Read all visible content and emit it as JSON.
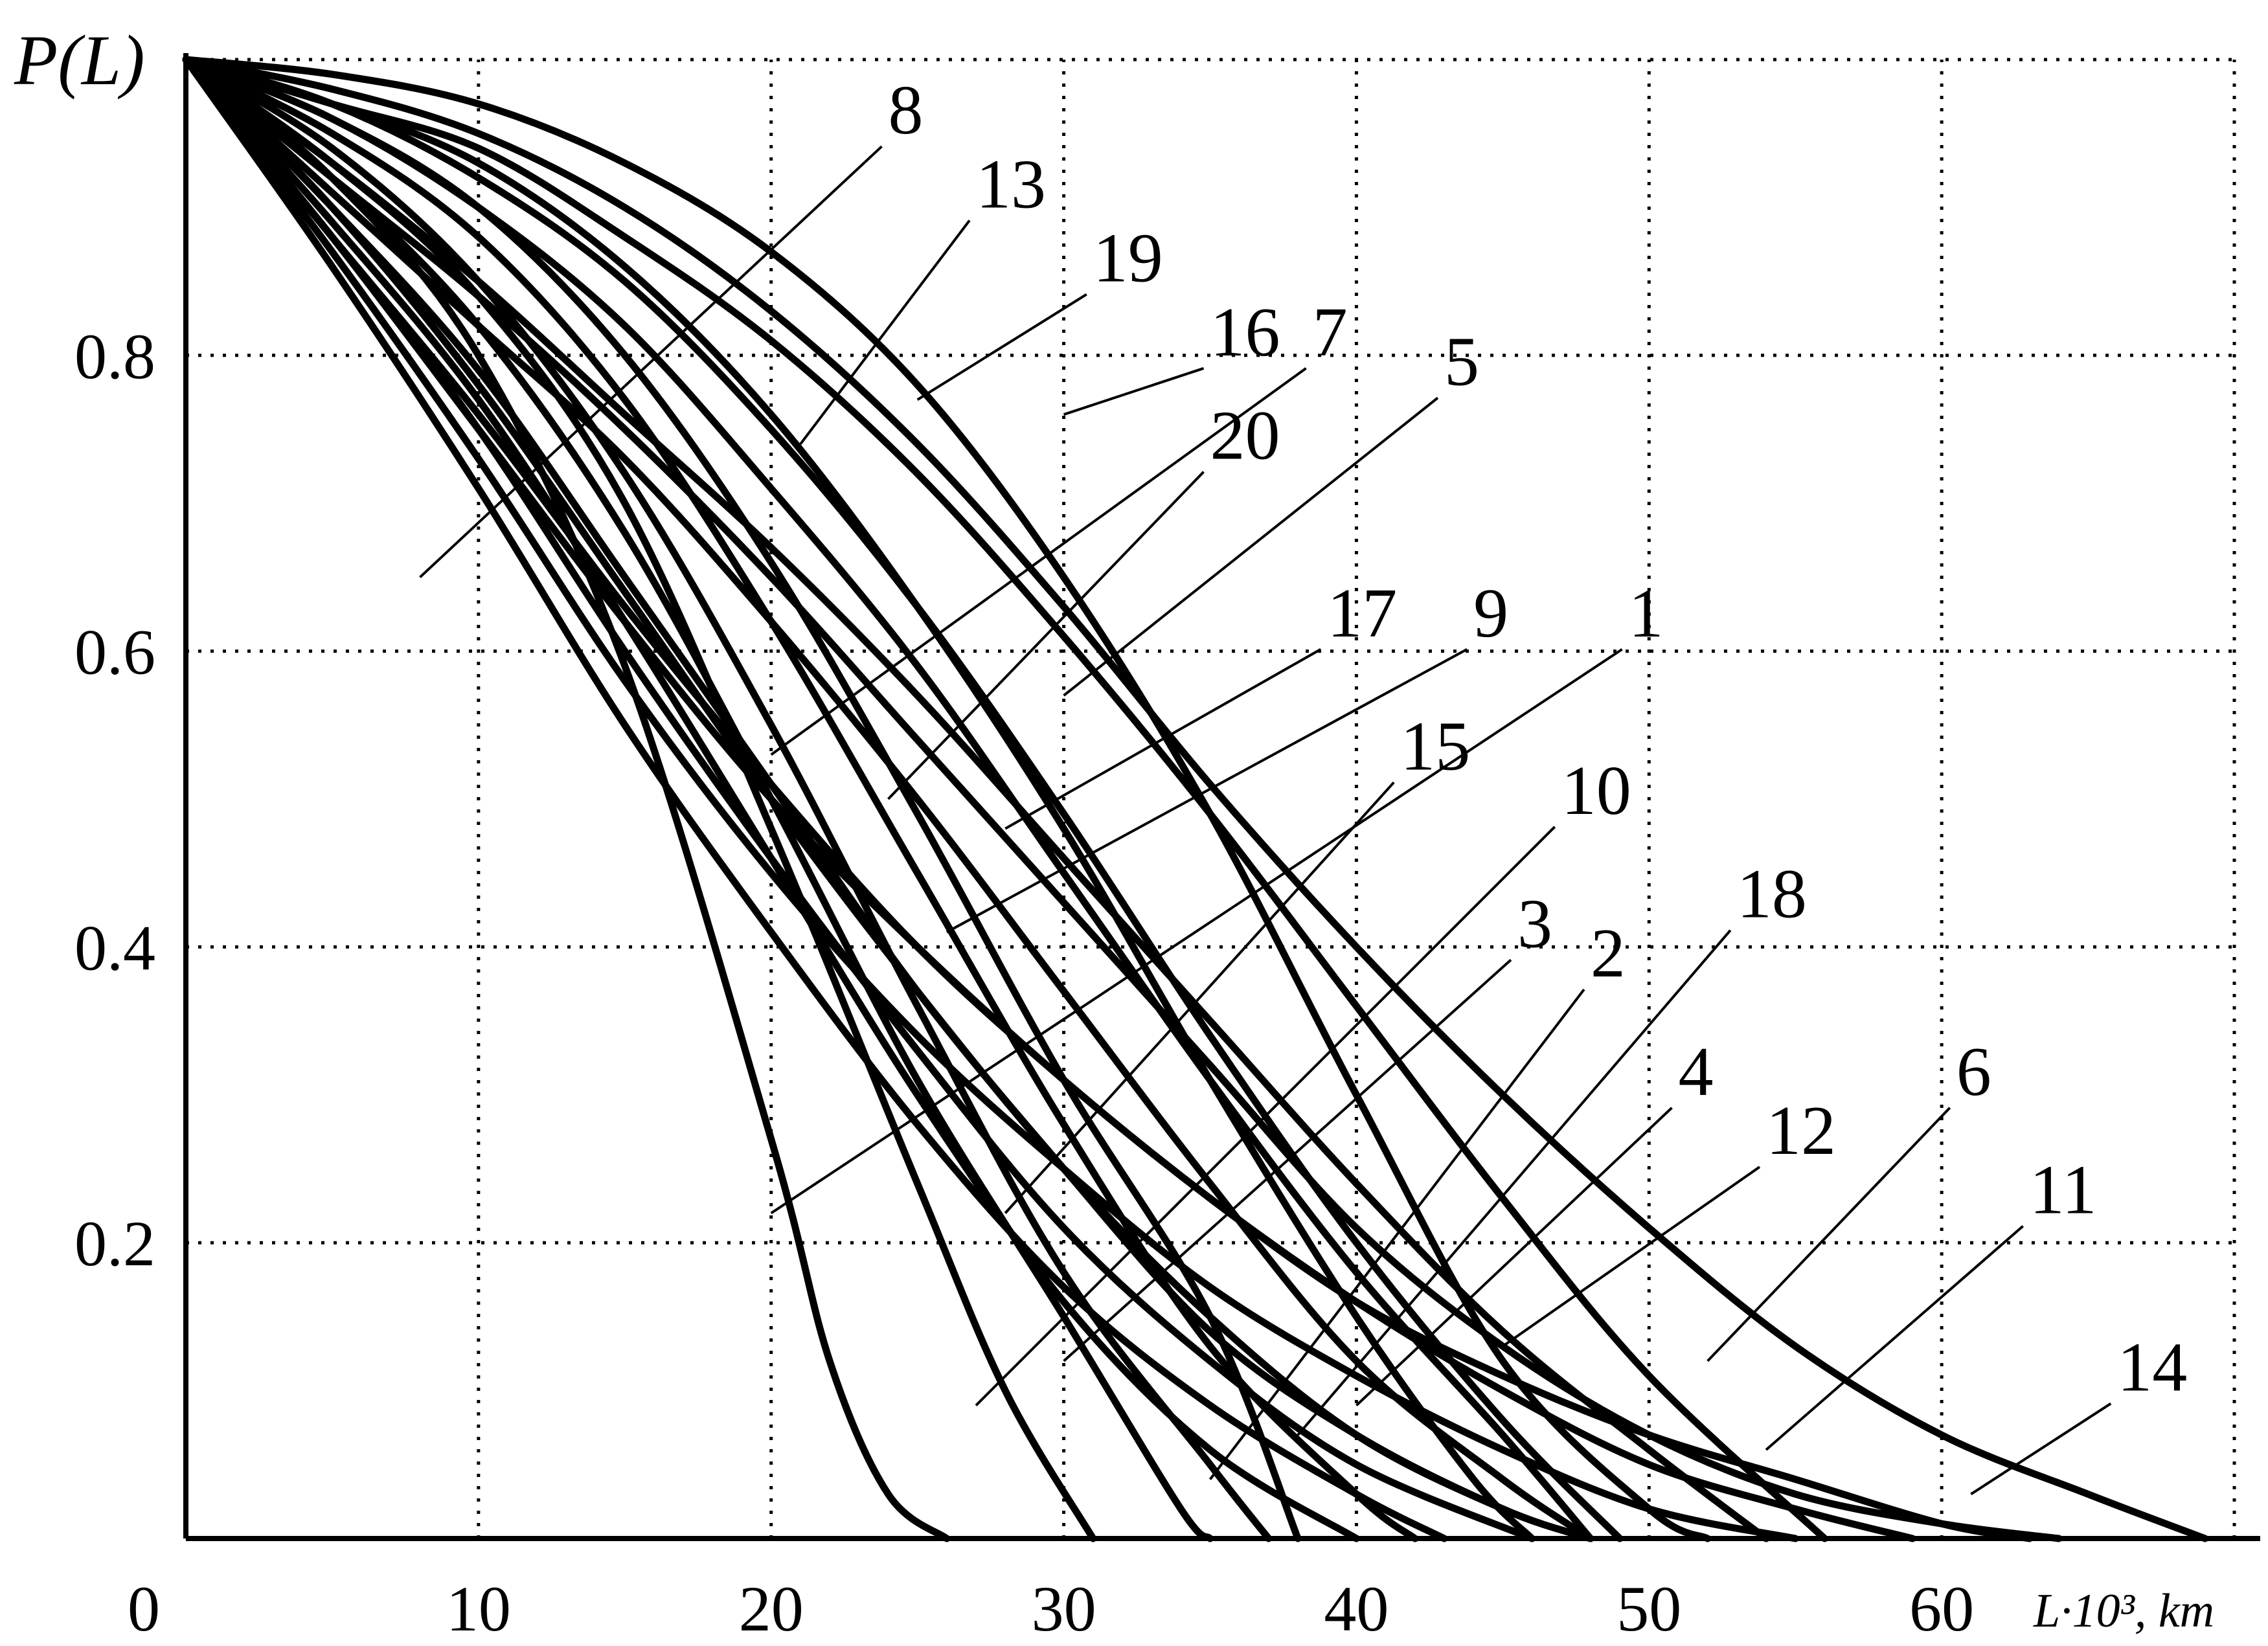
{
  "chart_data": {
    "type": "line",
    "ylabel": "P(L)",
    "xlabel": "L·10³, km",
    "xlim": [
      0,
      70
    ],
    "ylim": [
      0,
      1.0
    ],
    "x_ticks": [
      0,
      10,
      20,
      30,
      40,
      50,
      60
    ],
    "y_ticks": [
      0.2,
      0.4,
      0.6,
      0.8
    ],
    "x_tick_labels": [
      "0",
      "10",
      "20",
      "30",
      "40",
      "50",
      "60"
    ],
    "y_tick_labels": [
      "0.2",
      "0.4",
      "0.6",
      "0.8"
    ],
    "grid": true,
    "grid_x": [
      10,
      20,
      30,
      40,
      50,
      60,
      70
    ],
    "grid_y": [
      0.2,
      0.4,
      0.6,
      0.8,
      1.0
    ],
    "series": [
      {
        "name": "1",
        "points": [
          [
            0,
            1
          ],
          [
            5,
            0.93
          ],
          [
            10,
            0.85
          ],
          [
            15,
            0.76
          ],
          [
            20,
            0.67
          ],
          [
            25,
            0.57
          ],
          [
            30,
            0.46
          ],
          [
            35,
            0.35
          ],
          [
            40,
            0.24
          ],
          [
            45,
            0.14
          ],
          [
            50,
            0.06
          ],
          [
            54,
            0
          ]
        ]
      },
      {
        "name": "2",
        "points": [
          [
            0,
            1
          ],
          [
            5,
            0.9
          ],
          [
            10,
            0.79
          ],
          [
            15,
            0.65
          ],
          [
            20,
            0.51
          ],
          [
            25,
            0.37
          ],
          [
            30,
            0.25
          ],
          [
            35,
            0.14
          ],
          [
            40,
            0.07
          ],
          [
            45,
            0.02
          ],
          [
            48,
            0
          ]
        ]
      },
      {
        "name": "3",
        "points": [
          [
            0,
            1
          ],
          [
            5,
            0.88
          ],
          [
            10,
            0.75
          ],
          [
            15,
            0.6
          ],
          [
            20,
            0.46
          ],
          [
            25,
            0.33
          ],
          [
            30,
            0.21
          ],
          [
            35,
            0.12
          ],
          [
            40,
            0.05
          ],
          [
            46,
            0
          ]
        ]
      },
      {
        "name": "4",
        "points": [
          [
            0,
            1
          ],
          [
            5,
            0.87
          ],
          [
            10,
            0.73
          ],
          [
            15,
            0.58
          ],
          [
            20,
            0.45
          ],
          [
            25,
            0.34
          ],
          [
            30,
            0.25
          ],
          [
            35,
            0.17
          ],
          [
            40,
            0.11
          ],
          [
            45,
            0.06
          ],
          [
            50,
            0.02
          ],
          [
            55,
            0
          ]
        ]
      },
      {
        "name": "5",
        "points": [
          [
            0,
            1
          ],
          [
            5,
            0.96
          ],
          [
            10,
            0.9
          ],
          [
            15,
            0.82
          ],
          [
            20,
            0.71
          ],
          [
            25,
            0.59
          ],
          [
            30,
            0.45
          ],
          [
            35,
            0.31
          ],
          [
            40,
            0.18
          ],
          [
            45,
            0.07
          ],
          [
            48,
            0
          ]
        ]
      },
      {
        "name": "6",
        "points": [
          [
            0,
            1
          ],
          [
            5,
            0.88
          ],
          [
            10,
            0.75
          ],
          [
            15,
            0.62
          ],
          [
            20,
            0.5
          ],
          [
            25,
            0.4
          ],
          [
            30,
            0.31
          ],
          [
            35,
            0.23
          ],
          [
            40,
            0.16
          ],
          [
            45,
            0.11
          ],
          [
            50,
            0.07
          ],
          [
            55,
            0.04
          ],
          [
            60,
            0.01
          ],
          [
            63,
            0
          ]
        ]
      },
      {
        "name": "7",
        "points": [
          [
            0,
            1
          ],
          [
            5,
            0.97
          ],
          [
            10,
            0.94
          ],
          [
            15,
            0.88
          ],
          [
            20,
            0.81
          ],
          [
            25,
            0.72
          ],
          [
            30,
            0.61
          ],
          [
            35,
            0.49
          ],
          [
            40,
            0.36
          ],
          [
            45,
            0.23
          ],
          [
            50,
            0.11
          ],
          [
            56,
            0
          ]
        ]
      },
      {
        "name": "8",
        "points": [
          [
            0,
            1
          ],
          [
            5,
            0.86
          ],
          [
            10,
            0.71
          ],
          [
            15,
            0.55
          ],
          [
            20,
            0.41
          ],
          [
            25,
            0.28
          ],
          [
            30,
            0.17
          ],
          [
            35,
            0.09
          ],
          [
            40,
            0.03
          ],
          [
            43,
            0
          ]
        ]
      },
      {
        "name": "9",
        "points": [
          [
            0,
            1
          ],
          [
            5,
            0.91
          ],
          [
            10,
            0.82
          ],
          [
            15,
            0.73
          ],
          [
            20,
            0.62
          ],
          [
            25,
            0.5
          ],
          [
            30,
            0.37
          ],
          [
            35,
            0.24
          ],
          [
            40,
            0.12
          ],
          [
            45,
            0.04
          ],
          [
            48,
            0
          ]
        ]
      },
      {
        "name": "10",
        "points": [
          [
            0,
            1
          ],
          [
            5,
            0.89
          ],
          [
            10,
            0.77
          ],
          [
            15,
            0.62
          ],
          [
            20,
            0.46
          ],
          [
            25,
            0.3
          ],
          [
            30,
            0.16
          ],
          [
            35,
            0.06
          ],
          [
            40,
            0
          ]
        ]
      },
      {
        "name": "11",
        "points": [
          [
            0,
            1
          ],
          [
            5,
            0.92
          ],
          [
            10,
            0.84
          ],
          [
            15,
            0.75
          ],
          [
            20,
            0.65
          ],
          [
            25,
            0.54
          ],
          [
            30,
            0.43
          ],
          [
            35,
            0.32
          ],
          [
            40,
            0.21
          ],
          [
            45,
            0.13
          ],
          [
            50,
            0.07
          ],
          [
            55,
            0.03
          ],
          [
            60,
            0.01
          ],
          [
            64,
            0
          ]
        ]
      },
      {
        "name": "12",
        "points": [
          [
            0,
            1
          ],
          [
            5,
            0.88
          ],
          [
            10,
            0.76
          ],
          [
            15,
            0.63
          ],
          [
            20,
            0.51
          ],
          [
            25,
            0.4
          ],
          [
            30,
            0.31
          ],
          [
            35,
            0.23
          ],
          [
            40,
            0.16
          ],
          [
            45,
            0.1
          ],
          [
            50,
            0.05
          ],
          [
            55,
            0.02
          ],
          [
            59,
            0
          ]
        ]
      },
      {
        "name": "13",
        "points": [
          [
            0,
            1
          ],
          [
            5,
            0.96
          ],
          [
            10,
            0.9
          ],
          [
            15,
            0.8
          ],
          [
            20,
            0.66
          ],
          [
            25,
            0.49
          ],
          [
            30,
            0.31
          ],
          [
            35,
            0.15
          ],
          [
            38,
            0
          ]
        ]
      },
      {
        "name": "14",
        "points": [
          [
            0,
            1
          ],
          [
            5,
            0.98
          ],
          [
            10,
            0.95
          ],
          [
            15,
            0.9
          ],
          [
            20,
            0.83
          ],
          [
            25,
            0.74
          ],
          [
            30,
            0.63
          ],
          [
            35,
            0.51
          ],
          [
            40,
            0.4
          ],
          [
            45,
            0.3
          ],
          [
            50,
            0.21
          ],
          [
            55,
            0.13
          ],
          [
            60,
            0.07
          ],
          [
            65,
            0.03
          ],
          [
            69,
            0
          ]
        ]
      },
      {
        "name": "15",
        "points": [
          [
            0,
            1
          ],
          [
            5,
            0.95
          ],
          [
            10,
            0.88
          ],
          [
            15,
            0.77
          ],
          [
            20,
            0.62
          ],
          [
            25,
            0.45
          ],
          [
            30,
            0.28
          ],
          [
            35,
            0.13
          ],
          [
            40,
            0.03
          ],
          [
            42,
            0
          ]
        ]
      },
      {
        "name": "16",
        "points": [
          [
            0,
            1
          ],
          [
            5,
            0.97
          ],
          [
            10,
            0.92
          ],
          [
            15,
            0.85
          ],
          [
            20,
            0.75
          ],
          [
            25,
            0.63
          ],
          [
            30,
            0.49
          ],
          [
            35,
            0.34
          ],
          [
            40,
            0.2
          ],
          [
            45,
            0.08
          ],
          [
            49,
            0
          ]
        ]
      },
      {
        "name": "17",
        "points": [
          [
            0,
            1
          ],
          [
            5,
            0.9
          ],
          [
            10,
            0.78
          ],
          [
            15,
            0.64
          ],
          [
            20,
            0.5
          ],
          [
            25,
            0.37
          ],
          [
            30,
            0.25
          ],
          [
            35,
            0.15
          ],
          [
            40,
            0.07
          ],
          [
            45,
            0.02
          ],
          [
            48,
            0
          ]
        ]
      },
      {
        "name": "18",
        "points": [
          [
            0,
            1
          ],
          [
            5,
            0.99
          ],
          [
            10,
            0.97
          ],
          [
            15,
            0.93
          ],
          [
            20,
            0.87
          ],
          [
            25,
            0.78
          ],
          [
            30,
            0.65
          ],
          [
            35,
            0.49
          ],
          [
            40,
            0.3
          ],
          [
            45,
            0.12
          ],
          [
            50,
            0.02
          ],
          [
            52,
            0
          ]
        ]
      },
      {
        "name": "19",
        "points": [
          [
            0,
            1
          ],
          [
            5,
            0.97
          ],
          [
            10,
            0.93
          ],
          [
            15,
            0.86
          ],
          [
            20,
            0.76
          ],
          [
            25,
            0.63
          ],
          [
            30,
            0.48
          ],
          [
            35,
            0.31
          ],
          [
            40,
            0.15
          ],
          [
            44,
            0.04
          ],
          [
            46,
            0
          ]
        ]
      },
      {
        "name": "20",
        "points": [
          [
            0,
            1
          ],
          [
            5,
            0.94
          ],
          [
            10,
            0.85
          ],
          [
            15,
            0.72
          ],
          [
            20,
            0.55
          ],
          [
            25,
            0.36
          ],
          [
            30,
            0.18
          ],
          [
            35,
            0.05
          ],
          [
            37,
            0
          ]
        ]
      },
      {
        "name": "",
        "points": [
          [
            0,
            1
          ],
          [
            5,
            0.92
          ],
          [
            10,
            0.8
          ],
          [
            15,
            0.59
          ],
          [
            20,
            0.27
          ],
          [
            22,
            0.12
          ],
          [
            24,
            0.03
          ],
          [
            26,
            0
          ]
        ]
      },
      {
        "name": "",
        "points": [
          [
            0,
            1
          ],
          [
            5,
            0.93
          ],
          [
            10,
            0.84
          ],
          [
            15,
            0.7
          ],
          [
            20,
            0.48
          ],
          [
            25,
            0.24
          ],
          [
            28,
            0.1
          ],
          [
            31,
            0
          ]
        ]
      },
      {
        "name": "",
        "points": [
          [
            0,
            1
          ],
          [
            5,
            0.92
          ],
          [
            10,
            0.82
          ],
          [
            15,
            0.68
          ],
          [
            20,
            0.5
          ],
          [
            25,
            0.31
          ],
          [
            30,
            0.15
          ],
          [
            34,
            0.02
          ],
          [
            35,
            0
          ]
        ]
      }
    ],
    "annotations": [
      {
        "text": "8",
        "label_at": [
          24,
          0.95
        ],
        "leader_to": [
          8,
          0.65
        ]
      },
      {
        "text": "13",
        "label_at": [
          27,
          0.9
        ],
        "leader_to": [
          21,
          0.74
        ]
      },
      {
        "text": "19",
        "label_at": [
          31,
          0.85
        ],
        "leader_to": [
          25,
          0.77
        ]
      },
      {
        "text": "16",
        "label_at": [
          35,
          0.8
        ],
        "leader_to": [
          30,
          0.76
        ]
      },
      {
        "text": "7",
        "label_at": [
          38.5,
          0.8
        ],
        "leader_to": [
          20,
          0.53
        ]
      },
      {
        "text": "20",
        "label_at": [
          35,
          0.73
        ],
        "leader_to": [
          24,
          0.5
        ]
      },
      {
        "text": "5",
        "label_at": [
          43,
          0.78
        ],
        "leader_to": [
          30,
          0.57
        ]
      },
      {
        "text": "17",
        "label_at": [
          39,
          0.61
        ],
        "leader_to": [
          28,
          0.48
        ]
      },
      {
        "text": "9",
        "label_at": [
          44,
          0.61
        ],
        "leader_to": [
          26,
          0.41
        ]
      },
      {
        "text": "1",
        "label_at": [
          49.3,
          0.61
        ],
        "leader_to": [
          20,
          0.22
        ]
      },
      {
        "text": "15",
        "label_at": [
          41.5,
          0.52
        ],
        "leader_to": [
          28,
          0.22
        ]
      },
      {
        "text": "10",
        "label_at": [
          47,
          0.49
        ],
        "leader_to": [
          27,
          0.09
        ]
      },
      {
        "text": "3",
        "label_at": [
          45.5,
          0.4
        ],
        "leader_to": [
          30,
          0.12
        ]
      },
      {
        "text": "2",
        "label_at": [
          48,
          0.38
        ],
        "leader_to": [
          35,
          0.04
        ]
      },
      {
        "text": "18",
        "label_at": [
          53,
          0.42
        ],
        "leader_to": [
          38,
          0.07
        ]
      },
      {
        "text": "4",
        "label_at": [
          51,
          0.3
        ],
        "leader_to": [
          40,
          0.09
        ]
      },
      {
        "text": "12",
        "label_at": [
          54,
          0.26
        ],
        "leader_to": [
          45,
          0.13
        ]
      },
      {
        "text": "6",
        "label_at": [
          60.5,
          0.3
        ],
        "leader_to": [
          52,
          0.12
        ]
      },
      {
        "text": "11",
        "label_at": [
          63,
          0.22
        ],
        "leader_to": [
          54,
          0.06
        ]
      },
      {
        "text": "14",
        "label_at": [
          66,
          0.1
        ],
        "leader_to": [
          61,
          0.03
        ]
      }
    ]
  }
}
